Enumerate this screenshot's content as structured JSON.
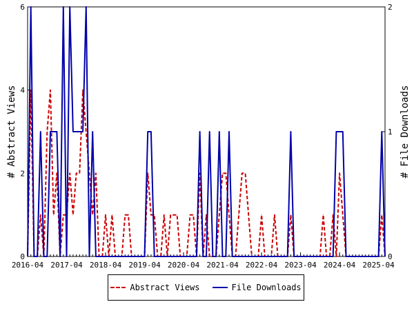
{
  "chart_data": {
    "type": "line",
    "title": "",
    "x_tick_labels": [
      "2016-04",
      "2017-04",
      "2018-04",
      "2019-04",
      "2020-04",
      "2021-04",
      "2022-04",
      "2023-04",
      "2024-04",
      "2025-04"
    ],
    "y_left": {
      "label": "# Abstract Views",
      "ylim": [
        0,
        6
      ],
      "ticks": [
        "0",
        "2",
        "4",
        "6"
      ]
    },
    "y_right": {
      "label": "# File Downloads",
      "ylim": [
        0,
        2
      ],
      "ticks": [
        "0",
        "1",
        "2"
      ]
    },
    "x_range": [
      "2016-04",
      "2025-06"
    ],
    "grid": false,
    "legend_position": "bottom",
    "series": [
      {
        "name": "Abstract Views",
        "axis": "left",
        "color": "#cc0000",
        "style": "dashed",
        "values": [
          [
            "2016-04",
            0
          ],
          [
            "2016-05",
            4
          ],
          [
            "2016-06",
            0
          ],
          [
            "2016-07",
            0
          ],
          [
            "2016-08",
            1
          ],
          [
            "2016-09",
            0
          ],
          [
            "2016-10",
            3
          ],
          [
            "2016-11",
            4
          ],
          [
            "2016-12",
            1
          ],
          [
            "2017-01",
            2
          ],
          [
            "2017-02",
            0
          ],
          [
            "2017-03",
            1
          ],
          [
            "2017-04",
            1
          ],
          [
            "2017-05",
            2
          ],
          [
            "2017-06",
            1
          ],
          [
            "2017-07",
            2
          ],
          [
            "2017-08",
            2
          ],
          [
            "2017-09",
            4
          ],
          [
            "2017-10",
            3
          ],
          [
            "2017-11",
            2
          ],
          [
            "2017-12",
            1
          ],
          [
            "2018-01",
            2
          ],
          [
            "2018-02",
            0
          ],
          [
            "2018-03",
            0
          ],
          [
            "2018-04",
            1
          ],
          [
            "2018-05",
            0
          ],
          [
            "2018-06",
            1
          ],
          [
            "2018-07",
            0
          ],
          [
            "2018-08",
            0
          ],
          [
            "2018-09",
            0
          ],
          [
            "2018-10",
            1
          ],
          [
            "2018-11",
            1
          ],
          [
            "2018-12",
            0
          ],
          [
            "2019-01",
            0
          ],
          [
            "2019-02",
            0
          ],
          [
            "2019-03",
            0
          ],
          [
            "2019-04",
            0
          ],
          [
            "2019-05",
            2
          ],
          [
            "2019-06",
            1
          ],
          [
            "2019-07",
            1
          ],
          [
            "2019-08",
            0
          ],
          [
            "2019-09",
            0
          ],
          [
            "2019-10",
            1
          ],
          [
            "2019-11",
            0
          ],
          [
            "2019-12",
            1
          ],
          [
            "2020-01",
            1
          ],
          [
            "2020-02",
            1
          ],
          [
            "2020-03",
            0
          ],
          [
            "2020-04",
            0
          ],
          [
            "2020-05",
            0
          ],
          [
            "2020-06",
            1
          ],
          [
            "2020-07",
            1
          ],
          [
            "2020-08",
            0
          ],
          [
            "2020-09",
            2
          ],
          [
            "2020-10",
            0
          ],
          [
            "2020-11",
            1
          ],
          [
            "2020-12",
            0
          ],
          [
            "2021-01",
            0
          ],
          [
            "2021-02",
            0
          ],
          [
            "2021-03",
            1
          ],
          [
            "2021-04",
            2
          ],
          [
            "2021-05",
            2
          ],
          [
            "2021-06",
            1
          ],
          [
            "2021-07",
            0
          ],
          [
            "2021-08",
            0
          ],
          [
            "2021-09",
            1
          ],
          [
            "2021-10",
            2
          ],
          [
            "2021-11",
            2
          ],
          [
            "2021-12",
            1
          ],
          [
            "2022-01",
            0
          ],
          [
            "2022-02",
            0
          ],
          [
            "2022-03",
            0
          ],
          [
            "2022-04",
            1
          ],
          [
            "2022-05",
            0
          ],
          [
            "2022-06",
            0
          ],
          [
            "2022-07",
            0
          ],
          [
            "2022-08",
            1
          ],
          [
            "2022-09",
            0
          ],
          [
            "2022-10",
            0
          ],
          [
            "2022-11",
            0
          ],
          [
            "2022-12",
            0
          ],
          [
            "2023-01",
            1
          ],
          [
            "2023-02",
            0
          ],
          [
            "2023-03",
            0
          ],
          [
            "2023-04",
            0
          ],
          [
            "2023-05",
            0
          ],
          [
            "2023-06",
            0
          ],
          [
            "2023-07",
            0
          ],
          [
            "2023-08",
            0
          ],
          [
            "2023-09",
            0
          ],
          [
            "2023-10",
            0
          ],
          [
            "2023-11",
            1
          ],
          [
            "2023-12",
            0
          ],
          [
            "2024-01",
            0
          ],
          [
            "2024-02",
            1
          ],
          [
            "2024-03",
            0
          ],
          [
            "2024-04",
            2
          ],
          [
            "2024-05",
            1
          ],
          [
            "2024-06",
            0
          ],
          [
            "2024-07",
            0
          ],
          [
            "2024-08",
            0
          ],
          [
            "2024-09",
            0
          ],
          [
            "2024-10",
            0
          ],
          [
            "2024-11",
            0
          ],
          [
            "2024-12",
            0
          ],
          [
            "2025-01",
            0
          ],
          [
            "2025-02",
            0
          ],
          [
            "2025-03",
            0
          ],
          [
            "2025-04",
            0
          ],
          [
            "2025-05",
            1
          ],
          [
            "2025-06",
            0
          ]
        ]
      },
      {
        "name": "File Downloads",
        "axis": "right",
        "color": "#0000aa",
        "style": "solid",
        "values": [
          [
            "2016-04",
            0
          ],
          [
            "2016-05",
            2
          ],
          [
            "2016-06",
            0
          ],
          [
            "2016-07",
            0
          ],
          [
            "2016-08",
            1
          ],
          [
            "2016-09",
            0
          ],
          [
            "2016-10",
            0
          ],
          [
            "2016-11",
            1
          ],
          [
            "2016-12",
            1
          ],
          [
            "2017-01",
            1
          ],
          [
            "2017-02",
            0
          ],
          [
            "2017-03",
            2
          ],
          [
            "2017-04",
            0
          ],
          [
            "2017-05",
            2
          ],
          [
            "2017-06",
            1
          ],
          [
            "2017-07",
            1
          ],
          [
            "2017-08",
            1
          ],
          [
            "2017-09",
            1
          ],
          [
            "2017-10",
            2
          ],
          [
            "2017-11",
            0
          ],
          [
            "2017-12",
            1
          ],
          [
            "2018-01",
            0
          ],
          [
            "2018-02",
            0
          ],
          [
            "2018-03",
            0
          ],
          [
            "2018-04",
            0
          ],
          [
            "2018-05",
            0
          ],
          [
            "2018-06",
            0
          ],
          [
            "2018-07",
            0
          ],
          [
            "2018-08",
            0
          ],
          [
            "2018-09",
            0
          ],
          [
            "2018-10",
            0
          ],
          [
            "2018-11",
            0
          ],
          [
            "2018-12",
            0
          ],
          [
            "2019-01",
            0
          ],
          [
            "2019-02",
            0
          ],
          [
            "2019-03",
            0
          ],
          [
            "2019-04",
            0
          ],
          [
            "2019-05",
            1
          ],
          [
            "2019-06",
            1
          ],
          [
            "2019-07",
            0
          ],
          [
            "2019-08",
            0
          ],
          [
            "2019-09",
            0
          ],
          [
            "2019-10",
            0
          ],
          [
            "2019-11",
            0
          ],
          [
            "2019-12",
            0
          ],
          [
            "2020-01",
            0
          ],
          [
            "2020-02",
            0
          ],
          [
            "2020-03",
            0
          ],
          [
            "2020-04",
            0
          ],
          [
            "2020-05",
            0
          ],
          [
            "2020-06",
            0
          ],
          [
            "2020-07",
            0
          ],
          [
            "2020-08",
            0
          ],
          [
            "2020-09",
            1
          ],
          [
            "2020-10",
            0
          ],
          [
            "2020-11",
            0
          ],
          [
            "2020-12",
            1
          ],
          [
            "2021-01",
            0
          ],
          [
            "2021-02",
            0
          ],
          [
            "2021-03",
            1
          ],
          [
            "2021-04",
            0
          ],
          [
            "2021-05",
            0
          ],
          [
            "2021-06",
            1
          ],
          [
            "2021-07",
            0
          ],
          [
            "2021-08",
            0
          ],
          [
            "2021-09",
            0
          ],
          [
            "2021-10",
            0
          ],
          [
            "2021-11",
            0
          ],
          [
            "2021-12",
            0
          ],
          [
            "2022-01",
            0
          ],
          [
            "2022-02",
            0
          ],
          [
            "2022-03",
            0
          ],
          [
            "2022-04",
            0
          ],
          [
            "2022-05",
            0
          ],
          [
            "2022-06",
            0
          ],
          [
            "2022-07",
            0
          ],
          [
            "2022-08",
            0
          ],
          [
            "2022-09",
            0
          ],
          [
            "2022-10",
            0
          ],
          [
            "2022-11",
            0
          ],
          [
            "2022-12",
            0
          ],
          [
            "2023-01",
            1
          ],
          [
            "2023-02",
            0
          ],
          [
            "2023-03",
            0
          ],
          [
            "2023-04",
            0
          ],
          [
            "2023-05",
            0
          ],
          [
            "2023-06",
            0
          ],
          [
            "2023-07",
            0
          ],
          [
            "2023-08",
            0
          ],
          [
            "2023-09",
            0
          ],
          [
            "2023-10",
            0
          ],
          [
            "2023-11",
            0
          ],
          [
            "2023-12",
            0
          ],
          [
            "2024-01",
            0
          ],
          [
            "2024-02",
            0
          ],
          [
            "2024-03",
            1
          ],
          [
            "2024-04",
            1
          ],
          [
            "2024-05",
            1
          ],
          [
            "2024-06",
            0
          ],
          [
            "2024-07",
            0
          ],
          [
            "2024-08",
            0
          ],
          [
            "2024-09",
            0
          ],
          [
            "2024-10",
            0
          ],
          [
            "2024-11",
            0
          ],
          [
            "2024-12",
            0
          ],
          [
            "2025-01",
            0
          ],
          [
            "2025-02",
            0
          ],
          [
            "2025-03",
            0
          ],
          [
            "2025-04",
            0
          ],
          [
            "2025-05",
            1
          ],
          [
            "2025-06",
            0
          ]
        ]
      }
    ]
  },
  "legend": {
    "views_label": "Abstract Views",
    "downloads_label": "File Downloads"
  }
}
